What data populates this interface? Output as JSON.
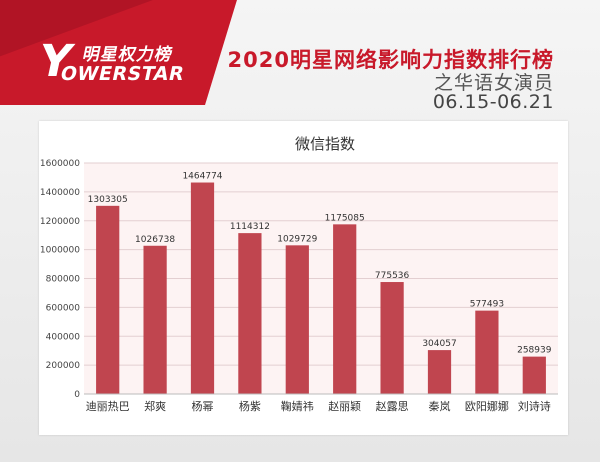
{
  "header": {
    "brand_cn": "明星权力榜",
    "brand_mark": "Y",
    "brand_en": "OWERSTAR",
    "title": "2020明星网络影响力指数排行榜",
    "subtitle": "之华语女演员",
    "date_range": "06.15-06.21"
  },
  "colors": {
    "accent": "#c8192a",
    "bar": "#c0454f",
    "plot_bg": "#fdf3f3"
  },
  "chart_data": {
    "type": "bar",
    "title": "微信指数",
    "xlabel": "",
    "ylabel": "",
    "ylim": [
      0,
      1600000
    ],
    "yticks": [
      "0",
      "200000",
      "400000",
      "600000",
      "800000",
      "1000000",
      "1200000",
      "1400000",
      "1600000"
    ],
    "grid": true,
    "categories": [
      "迪丽热巴",
      "郑爽",
      "杨幂",
      "杨紫",
      "鞠婧祎",
      "赵丽颖",
      "赵露思",
      "秦岚",
      "欧阳娜娜",
      "刘诗诗"
    ],
    "values": [
      1303305,
      1026738,
      1464774,
      1114312,
      1029729,
      1175085,
      775536,
      304057,
      577493,
      258939
    ],
    "data_labels": [
      "1303305",
      "1026738",
      "1464774",
      "1114312",
      "1029729",
      "1175085",
      "775536",
      "304057",
      "577493",
      "258939"
    ]
  }
}
